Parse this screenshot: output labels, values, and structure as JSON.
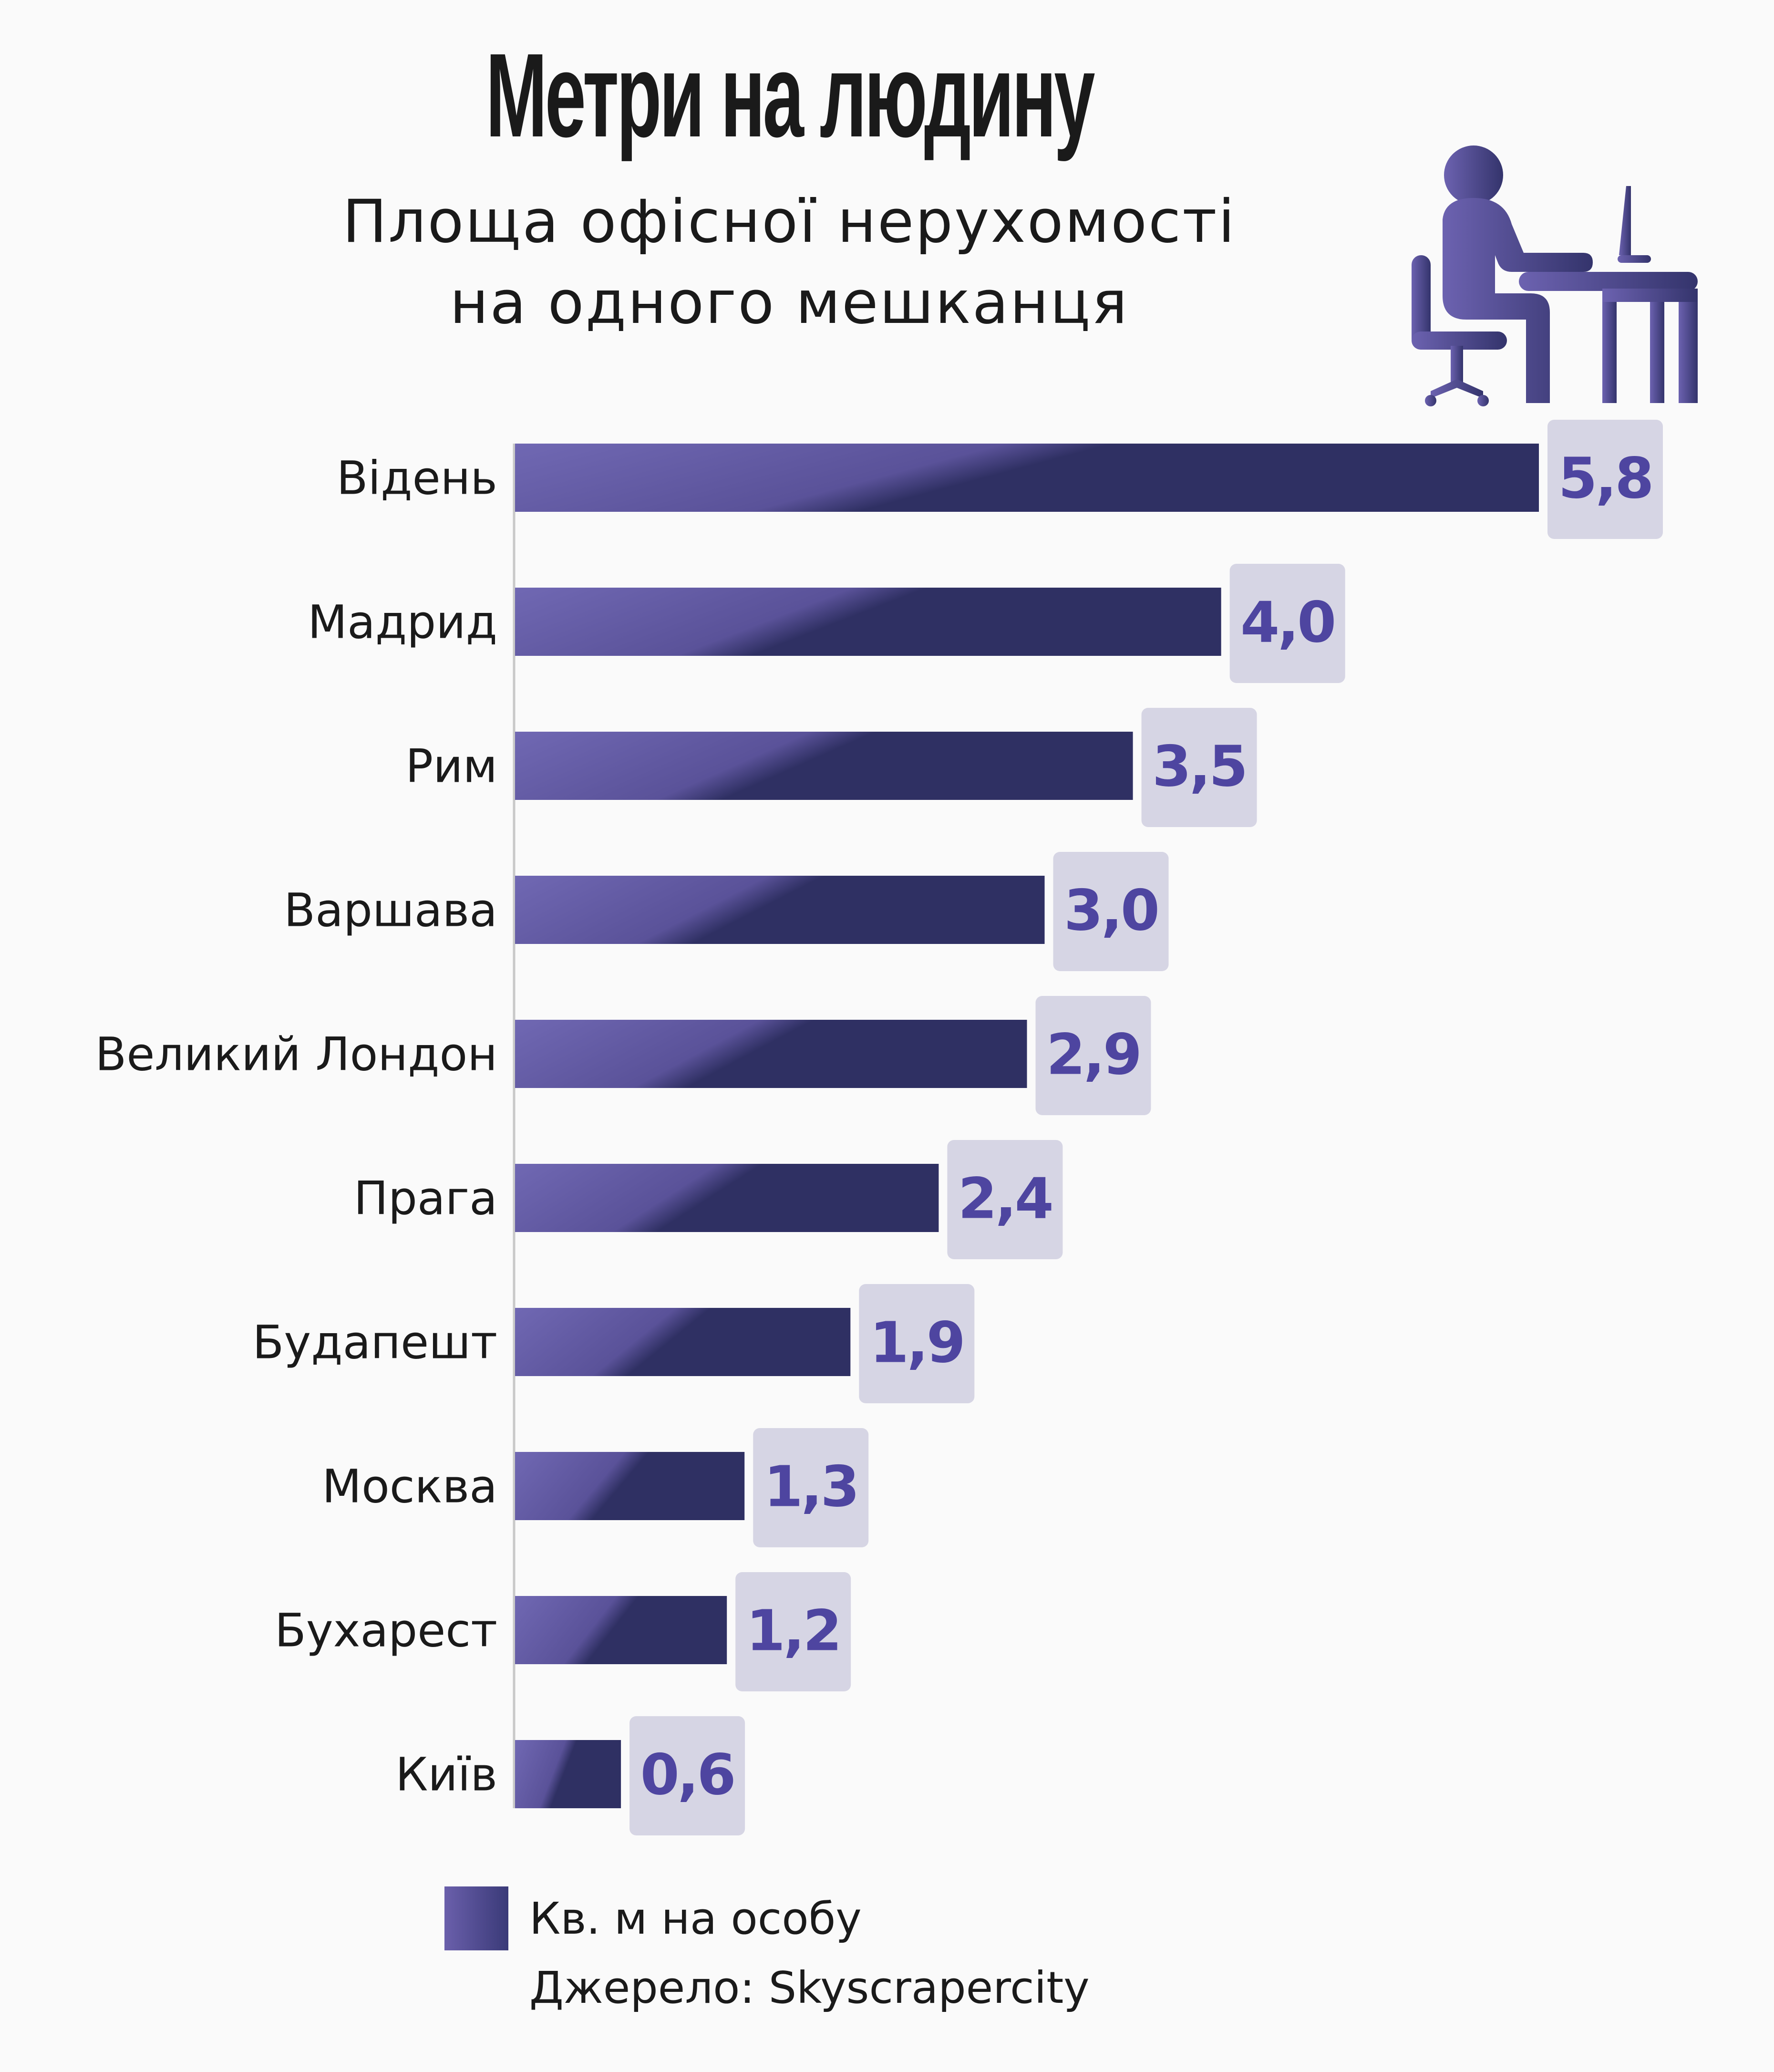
{
  "title": "Метри на людину",
  "subtitle_lines": [
    "Площа офісної нерухомості",
    "на одного мешканця"
  ],
  "icon": "office-worker-at-desk-icon",
  "colors": {
    "bar_light": "#7068b3",
    "bar_mid": "#5a5299",
    "bar_dark": "#2f3063",
    "value_text": "#4e45a0",
    "value_box": "#d6d5e4",
    "axis": "#c8c8c8",
    "background": "#fafafa"
  },
  "chart_data": {
    "type": "bar",
    "orientation": "horizontal",
    "categories": [
      "Відень",
      "Мадрид",
      "Рим",
      "Варшава",
      "Великий Лондон",
      "Прага",
      "Будапешт",
      "Москва",
      "Бухарест",
      "Київ"
    ],
    "values": [
      5.8,
      4.0,
      3.5,
      3.0,
      2.9,
      2.4,
      1.9,
      1.3,
      1.2,
      0.6
    ],
    "value_labels": [
      "5,8",
      "4,0",
      "3,5",
      "3,0",
      "2,9",
      "2,4",
      "1,9",
      "1,3",
      "1,2",
      "0,6"
    ],
    "series": [
      {
        "name": "Кв. м на особу"
      }
    ],
    "xlim": [
      0,
      5.8
    ],
    "grid": false,
    "legend_position": "bottom"
  },
  "legend": {
    "label": "Кв. м на особу"
  },
  "source": "Джерело: Skyscrapercity"
}
